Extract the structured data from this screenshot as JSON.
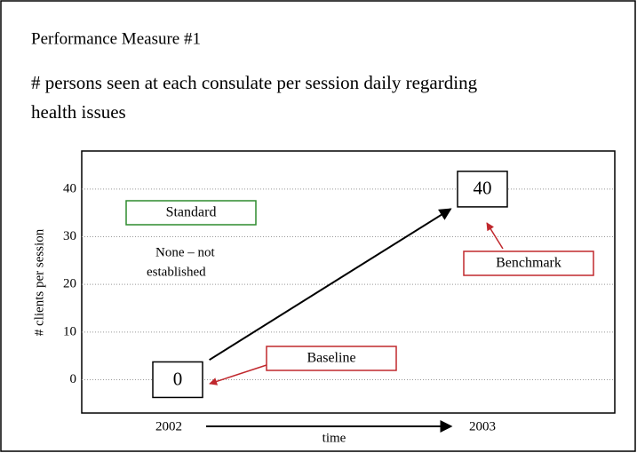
{
  "chart_data": {
    "type": "line",
    "title": "Performance Measure #1",
    "subtitle": [
      "# persons seen at each consulate per session daily regarding",
      "health issues"
    ],
    "ylabel": "# clients per session",
    "xlabel": "time",
    "categories": [
      "2002",
      "2003"
    ],
    "values": [
      0,
      40
    ],
    "color": "#000000",
    "ylim": [
      -7,
      48
    ],
    "yticks": [
      0,
      10,
      20,
      30,
      40
    ],
    "grid": true,
    "annotations": {
      "standard": {
        "text": "Standard",
        "color": "#2e8b2e"
      },
      "standard_note": [
        "None – not",
        "established"
      ],
      "benchmark": {
        "text": "Benchmark",
        "color": "#c0282d"
      },
      "baseline": {
        "text": "Baseline",
        "color": "#c0282d"
      }
    }
  }
}
